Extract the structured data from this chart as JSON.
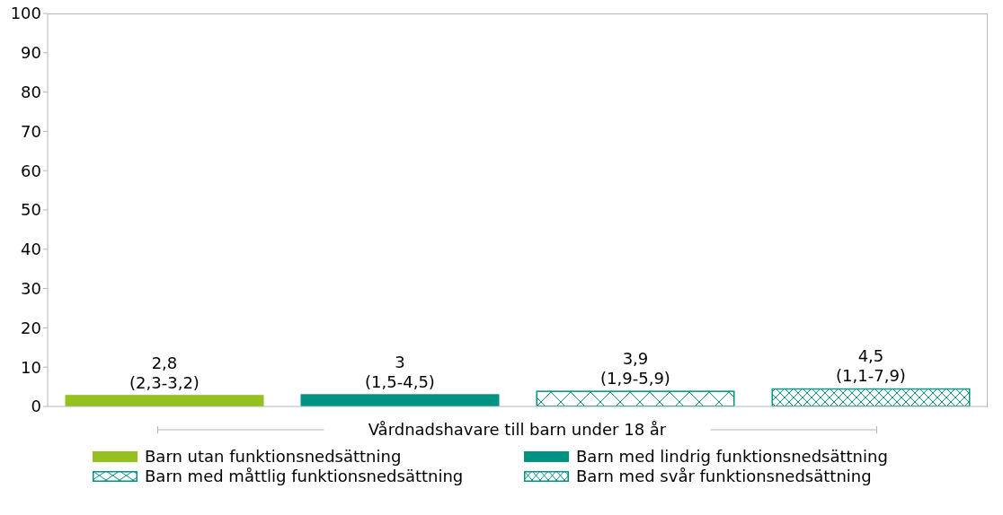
{
  "chart_data": {
    "type": "bar",
    "categories": [
      "Vårdnadshavare till barn under 18 år"
    ],
    "series": [
      {
        "name": "Barn utan funktionsnedsättning",
        "color": "#95c11f",
        "values": [
          2.8
        ],
        "value_labels": [
          "2,8\n(2,3-3,2)"
        ]
      },
      {
        "name": "Barn med lindrig funktionsnedsättning",
        "color": "#009384",
        "values": [
          3
        ],
        "value_labels": [
          "3\n(1,5-4,5)"
        ]
      },
      {
        "name": "Barn med måttlig funktionsnedsättning",
        "color": "#009384",
        "values": [
          3.9
        ],
        "value_labels": [
          "3,9\n(1,9-5,9)"
        ]
      },
      {
        "name": "Barn med svår funktionsnedsättning",
        "color": "#009384",
        "values": [
          4.5
        ],
        "value_labels": [
          "4,5\n(1,1-7,9)"
        ]
      }
    ],
    "ylim": [
      0,
      100
    ],
    "yticks": [
      0,
      10,
      20,
      30,
      40,
      50,
      60,
      70,
      80,
      90,
      100
    ],
    "grid": false,
    "legend": "bottom"
  }
}
